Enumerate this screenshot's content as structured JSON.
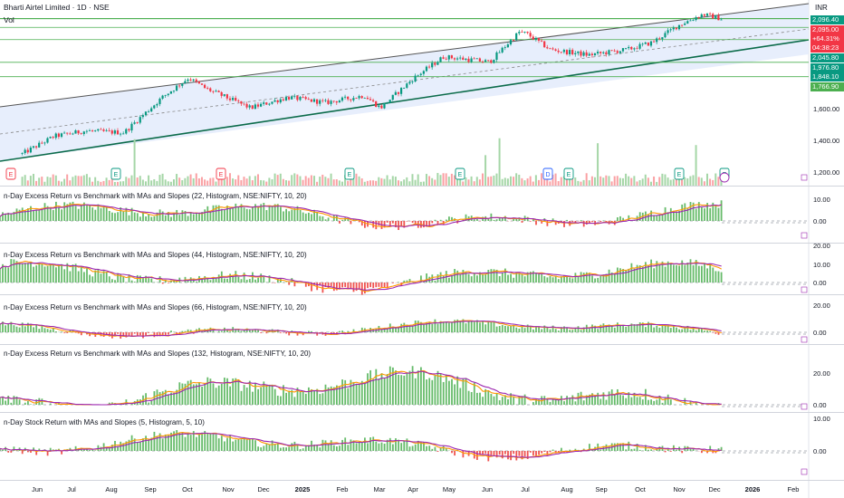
{
  "header": {
    "title": "Bharti Airtel Limited · 1D · NSE",
    "vol_label": "Vol",
    "currency": "INR"
  },
  "price_tags": [
    {
      "text": "2,096.40",
      "bg": "#089981"
    },
    {
      "text": "2,095.00",
      "bg": "#f23645"
    },
    {
      "text": "+64.31%",
      "bg": "#f23645"
    },
    {
      "text": "04:38:23",
      "bg": "#f23645"
    },
    {
      "text": "2,045.80",
      "bg": "#089981"
    },
    {
      "text": "1,976.80",
      "bg": "#089981"
    },
    {
      "text": "1,848.10",
      "bg": "#089981"
    },
    {
      "text": "1,766.90",
      "bg": "#4caf50"
    }
  ],
  "price_axis_ticks": [
    "1,600.00",
    "1,400.00",
    "1,200.00"
  ],
  "pane_labels": [
    "n-Day Excess Return vs Benchmark with MAs and Slopes (22, Histogram, NSE:NIFTY, 10, 20)",
    "n-Day Excess Return vs Benchmark with MAs and Slopes (44, Histogram, NSE:NIFTY, 10, 20)",
    "n-Day Excess Return vs Benchmark with MAs and Slopes (66, Histogram, NSE:NIFTY, 10, 20)",
    "n-Day Excess Return vs Benchmark with MAs and Slopes (132, Histogram, NSE:NIFTY, 10, 20)",
    "n-Day Stock Return with MAs and Slopes (5, Histogram, 5, 10)"
  ],
  "pane_ticks": [
    [
      "10.00",
      "0.00"
    ],
    [
      "20.00",
      "10.00",
      "0.00"
    ],
    [
      "20.00",
      "0.00"
    ],
    [
      "20.00",
      "0.00"
    ],
    [
      "10.00",
      "0.00"
    ]
  ],
  "x_axis_ticks": [
    "Jun",
    "Jul",
    "Aug",
    "Sep",
    "Oct",
    "Nov",
    "Dec",
    "2025",
    "Feb",
    "Mar",
    "Apr",
    "May",
    "Jun",
    "Jul",
    "Aug",
    "Sep",
    "Oct",
    "Nov",
    "Dec",
    "2026",
    "Feb"
  ],
  "colors": {
    "up": "#4caf50",
    "down": "#f23645",
    "ma_fast": "#ff9800",
    "ma_slow": "#9c27b0",
    "channel_fill": "#e3ebfb",
    "level": "#4caf50"
  },
  "chart_data": {
    "type": "candlestick",
    "title": "Bharti Airtel Limited · 1D · NSE",
    "currency": "INR",
    "x_range": [
      "2024-05-20",
      "2026-02-15"
    ],
    "y_range": [
      1150,
      2160
    ],
    "ohlc_shape_keypoints": [
      {
        "date": "2024-05-20",
        "close": 1330
      },
      {
        "date": "2024-06-15",
        "close": 1430
      },
      {
        "date": "2024-07-10",
        "close": 1460
      },
      {
        "date": "2024-08-10",
        "close": 1450
      },
      {
        "date": "2024-09-10",
        "close": 1650
      },
      {
        "date": "2024-10-01",
        "close": 1760
      },
      {
        "date": "2024-10-15",
        "close": 1700
      },
      {
        "date": "2024-11-20",
        "close": 1590
      },
      {
        "date": "2024-12-20",
        "close": 1650
      },
      {
        "date": "2025-01-20",
        "close": 1620
      },
      {
        "date": "2025-02-20",
        "close": 1660
      },
      {
        "date": "2025-03-05",
        "close": 1590
      },
      {
        "date": "2025-04-01",
        "close": 1760
      },
      {
        "date": "2025-04-25",
        "close": 1880
      },
      {
        "date": "2025-06-01",
        "close": 1850
      },
      {
        "date": "2025-06-25",
        "close": 2020
      },
      {
        "date": "2025-07-01",
        "close": 2010
      },
      {
        "date": "2025-07-20",
        "close": 1920
      },
      {
        "date": "2025-08-20",
        "close": 1890
      },
      {
        "date": "2025-09-20",
        "close": 1920
      },
      {
        "date": "2025-10-10",
        "close": 1960
      },
      {
        "date": "2025-11-01",
        "close": 2060
      },
      {
        "date": "2025-11-20",
        "close": 2120
      },
      {
        "date": "2025-12-05",
        "close": 2095
      }
    ],
    "horizontal_levels": [
      2096.4,
      2095.0,
      2045.8,
      1976.8,
      1848.1,
      1766.9
    ],
    "change_pct": "+64.31%",
    "event_markers": [
      "E",
      "E",
      "E",
      "E",
      "E",
      "D",
      "E",
      "E",
      "E"
    ]
  }
}
